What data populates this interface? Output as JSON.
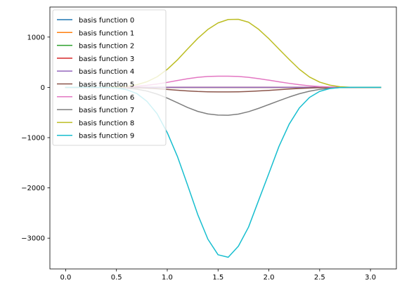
{
  "chart_data": {
    "type": "line",
    "title": "",
    "xlabel": "",
    "ylabel": "",
    "xlim": [
      -0.155,
      3.255
    ],
    "ylim": [
      -3612,
      1598
    ],
    "xticks": [
      0.0,
      0.5,
      1.0,
      1.5,
      2.0,
      2.5,
      3.0
    ],
    "xtick_labels": [
      "0.0",
      "0.5",
      "1.0",
      "1.5",
      "2.0",
      "2.5",
      "3.0"
    ],
    "yticks": [
      -3000,
      -2000,
      -1000,
      0,
      1000
    ],
    "ytick_labels": [
      "−3000",
      "−2000",
      "−1000",
      "0",
      "1000"
    ],
    "grid": false,
    "legend_position": "top-left",
    "x": [
      0.0,
      0.1,
      0.2,
      0.3,
      0.4,
      0.5,
      0.6,
      0.7,
      0.8,
      0.9,
      1.0,
      1.1,
      1.2,
      1.3,
      1.4,
      1.5,
      1.6,
      1.7,
      1.8,
      1.9,
      2.0,
      2.1,
      2.2,
      2.3,
      2.4,
      2.5,
      2.6,
      2.7,
      2.8,
      2.9,
      3.0,
      3.1
    ],
    "series": [
      {
        "name": "basis function 0",
        "color": "#1f77b4",
        "values": [
          0,
          0,
          0,
          0,
          0,
          0,
          0,
          0,
          0,
          0,
          0,
          0,
          0,
          0,
          0,
          0,
          0,
          0,
          0,
          0,
          0,
          0,
          0,
          0,
          0,
          0,
          0,
          0,
          0,
          0,
          0,
          0
        ]
      },
      {
        "name": "basis function 1",
        "color": "#ff7f0e",
        "values": [
          0,
          0,
          0,
          0,
          0,
          0,
          0,
          0,
          0,
          0,
          0,
          0,
          0,
          0,
          0,
          0,
          0,
          0,
          0,
          0,
          0,
          0,
          0,
          0,
          0,
          0,
          0,
          0,
          0,
          0,
          0,
          0
        ]
      },
      {
        "name": "basis function 2",
        "color": "#2ca02c",
        "values": [
          0,
          0,
          0,
          0,
          0,
          0,
          0,
          0,
          0,
          0,
          0,
          0,
          0,
          0,
          0,
          0,
          0,
          0,
          0,
          0,
          0,
          0,
          0,
          0,
          0,
          0,
          0,
          0,
          0,
          0,
          0,
          0
        ]
      },
      {
        "name": "basis function 3",
        "color": "#d62728",
        "values": [
          0,
          0,
          0,
          0,
          0,
          0,
          0,
          0,
          0,
          0,
          0,
          0,
          0,
          0,
          0,
          0,
          0,
          0,
          0,
          0,
          0,
          0,
          0,
          0,
          0,
          0,
          0,
          0,
          0,
          0,
          0,
          0
        ]
      },
      {
        "name": "basis function 4",
        "color": "#9467bd",
        "values": [
          0,
          0,
          0,
          0,
          0,
          0,
          0,
          0,
          0,
          0,
          0,
          0,
          0,
          0,
          0,
          0,
          0,
          0,
          0,
          0,
          0,
          0,
          0,
          0,
          0,
          0,
          0,
          0,
          0,
          0,
          0,
          0
        ]
      },
      {
        "name": "basis function 5",
        "color": "#8c564b",
        "values": [
          0,
          0,
          0,
          0,
          -0.5,
          -1.5,
          -4,
          -9,
          -17,
          -28,
          -42,
          -57,
          -71,
          -82,
          -88,
          -90,
          -90,
          -88,
          -82,
          -72,
          -60,
          -46,
          -33,
          -22,
          -13,
          -7,
          -3,
          -1,
          0,
          0,
          0,
          0
        ]
      },
      {
        "name": "basis function 6",
        "color": "#e377c2",
        "values": [
          0,
          0,
          0,
          0.5,
          1,
          4,
          10,
          21,
          40,
          66,
          99,
          136,
          171,
          200,
          217,
          223,
          223,
          217,
          200,
          173,
          143,
          111,
          80,
          52,
          31,
          16,
          7,
          2,
          0.5,
          0,
          0,
          0
        ]
      },
      {
        "name": "basis function 7",
        "color": "#7f7f7f",
        "values": [
          0,
          0,
          0,
          0,
          -1,
          -5,
          -16,
          -36,
          -74,
          -134,
          -214,
          -306,
          -400,
          -478,
          -528,
          -552,
          -554,
          -532,
          -484,
          -417,
          -342,
          -266,
          -192,
          -127,
          -76,
          -40,
          -17,
          -5,
          -1,
          0,
          0,
          0
        ]
      },
      {
        "name": "basis function 8",
        "color": "#bcbd22",
        "values": [
          0,
          0,
          0,
          0,
          1,
          6,
          20,
          52,
          112,
          210,
          358,
          546,
          764,
          974,
          1152,
          1282,
          1350,
          1354,
          1296,
          1154,
          968,
          760,
          556,
          360,
          206,
          104,
          44,
          13,
          2,
          0,
          0,
          0
        ]
      },
      {
        "name": "basis function 9",
        "color": "#17becf",
        "values": [
          0,
          0,
          0,
          0,
          -2,
          -12,
          -46,
          -122,
          -278,
          -524,
          -900,
          -1374,
          -1944,
          -2530,
          -3020,
          -3330,
          -3380,
          -3160,
          -2780,
          -2244,
          -1712,
          -1172,
          -732,
          -410,
          -200,
          -80,
          -24,
          -4,
          0,
          0,
          0,
          0
        ]
      }
    ]
  }
}
